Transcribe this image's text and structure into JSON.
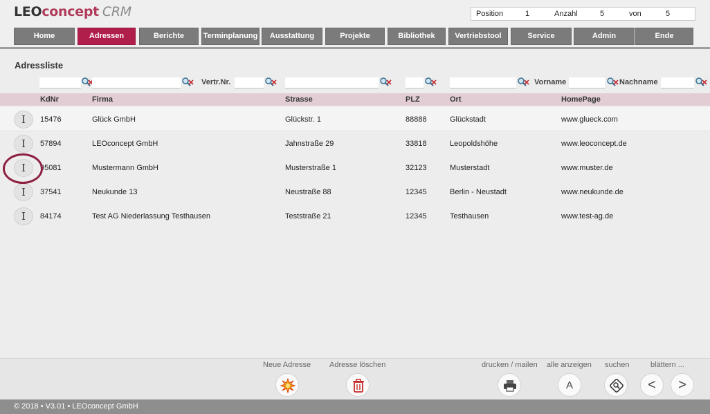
{
  "app": {
    "logo_part1": "LEO",
    "logo_part2": "concept",
    "logo_part3": "CRM"
  },
  "position_bar": {
    "position_label": "Position",
    "position_value": "1",
    "count_label": "Anzahl",
    "count_value": "5",
    "of_label": "von",
    "of_value": "5"
  },
  "nav": [
    "Home",
    "Adressen",
    "Berichte",
    "Terminplanung",
    "Ausstattung",
    "Projekte",
    "Bibliothek",
    "Vertriebstool",
    "Service",
    "Admin",
    "Ende"
  ],
  "nav_active": "Adressen",
  "page_title": "Adressliste",
  "filters": {
    "vertr_label": "Vertr.Nr.",
    "vorname_label": "Vorname",
    "nachname_label": "Nachname"
  },
  "table": {
    "headers": [
      "KdNr",
      "Firma",
      "Strasse",
      "PLZ",
      "Ort",
      "HomePage"
    ],
    "rows": [
      [
        "15476",
        "Glück GmbH",
        "Glückstr. 1",
        "88888",
        "Glückstadt",
        "www.glueck.com"
      ],
      [
        "57894",
        "LEOconcept GmbH",
        "Jahnstraße 29",
        "33818",
        "Leopoldshöhe",
        "www.leoconcept.de"
      ],
      [
        "95081",
        "Mustermann GmbH",
        "Musterstraße 1",
        "32123",
        "Musterstadt",
        "www.muster.de"
      ],
      [
        "37541",
        "Neukunde 13",
        "Neustraße 88",
        "12345",
        "Berlin - Neustadt",
        "www.neukunde.de"
      ],
      [
        "84174",
        "Test AG Niederlassung Testhausen",
        "Teststraße 21",
        "12345",
        "Testhausen",
        "www.test-ag.de"
      ]
    ],
    "row_button_glyph": "I"
  },
  "toolbar": {
    "new_label": "Neue Adresse",
    "delete_label": "Adresse löschen",
    "print_label": "drucken / mailen",
    "show_all_label": "alle anzeigen",
    "search_label": "suchen",
    "page_label": "blättern ...",
    "show_all_glyph": "A",
    "prev_glyph": "<",
    "next_glyph": ">"
  },
  "footer": "© 2018 • V3.01 • LEOconcept GmbH",
  "colors": {
    "accent": "#b01e4b",
    "nav_bg": "#7b7b7b",
    "header_row": "#e1cdd3",
    "ring": "#8e2041"
  }
}
